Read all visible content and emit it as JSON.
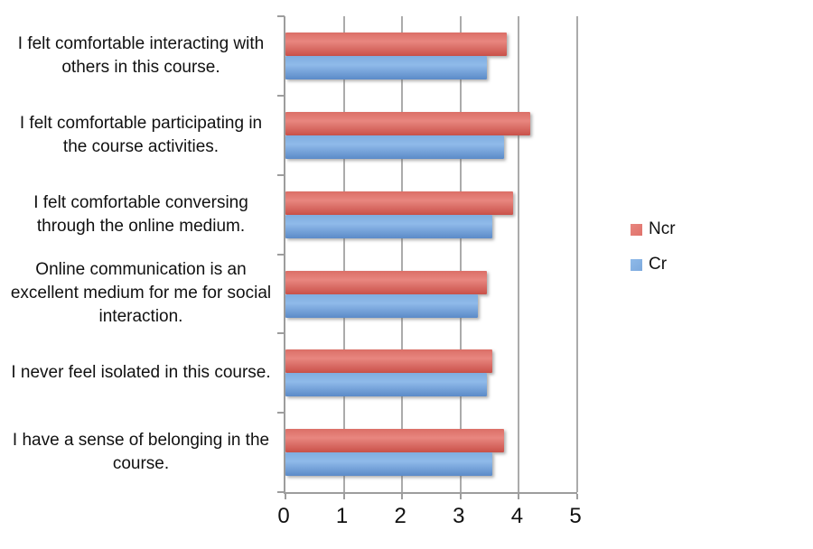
{
  "chart_data": {
    "type": "bar",
    "orientation": "horizontal",
    "title": "",
    "categories": [
      "I felt comfortable interacting with others in this course.",
      "I felt comfortable participating in the course activities.",
      "I felt comfortable conversing through the online medium.",
      "Online communication is an excellent medium for me for social interaction.",
      "I never feel isolated in this course.",
      "I have a sense of belonging in the course."
    ],
    "series": [
      {
        "name": "Ncr",
        "values": [
          3.8,
          4.2,
          3.9,
          3.45,
          3.55,
          3.75
        ],
        "color": "#e0726b",
        "gradient_top": "#db6f67",
        "gradient_mid": "#e98press_placeholder",
        "gradient_bottom": "#c95149"
      },
      {
        "name": "Cr",
        "values": [
          3.45,
          3.75,
          3.55,
          3.3,
          3.45,
          3.55
        ],
        "color": "#7ca9dd",
        "gradient_top": "#7fade0",
        "gradient_mid": "#8fbae9",
        "gradient_bottom": "#5b8ac8"
      }
    ],
    "xlim": [
      0,
      5
    ],
    "x_ticks": [
      "0",
      "1",
      "2",
      "3",
      "4",
      "5"
    ],
    "grid": "vertical-gridlines-on",
    "legend_position": "right",
    "background_color": "#ffffff",
    "gridline_color": "#ababab",
    "axis_color": "#9d9d9d",
    "text_color": "#111111"
  }
}
